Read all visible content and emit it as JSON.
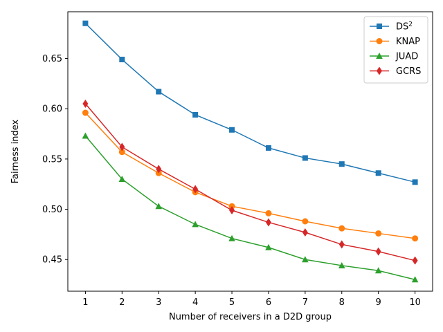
{
  "chart_data": {
    "type": "line",
    "title": "",
    "xlabel": "Number of receivers in a D2D group",
    "ylabel": "Fairness index",
    "x": [
      1,
      2,
      3,
      4,
      5,
      6,
      7,
      8,
      9,
      10
    ],
    "xlim": [
      0.52,
      10.48
    ],
    "ylim": [
      0.4185,
      0.6965
    ],
    "xticks": [
      "1",
      "2",
      "3",
      "4",
      "5",
      "6",
      "7",
      "8",
      "9",
      "10"
    ],
    "yticks": [
      0.45,
      0.5,
      0.55,
      0.6,
      0.65
    ],
    "ytick_labels": [
      "0.45",
      "0.50",
      "0.55",
      "0.60",
      "0.65"
    ],
    "grid": false,
    "legend_position": "top-right",
    "series": [
      {
        "name": "DS",
        "name_sup": "2",
        "color": "#1f77b4",
        "marker": "square",
        "values": [
          0.685,
          0.649,
          0.617,
          0.594,
          0.579,
          0.561,
          0.551,
          0.545,
          0.536,
          0.527
        ]
      },
      {
        "name": "KNAP",
        "name_sup": "",
        "color": "#ff7f0e",
        "marker": "circle",
        "values": [
          0.596,
          0.557,
          0.536,
          0.517,
          0.503,
          0.496,
          0.488,
          0.481,
          0.476,
          0.471
        ]
      },
      {
        "name": "JUAD",
        "name_sup": "",
        "color": "#2ca02c",
        "marker": "triangle",
        "values": [
          0.573,
          0.53,
          0.503,
          0.485,
          0.471,
          0.462,
          0.45,
          0.444,
          0.439,
          0.43
        ]
      },
      {
        "name": "GCRS",
        "name_sup": "",
        "color": "#d62728",
        "marker": "diamond",
        "values": [
          0.605,
          0.562,
          0.54,
          0.52,
          0.499,
          0.487,
          0.477,
          0.465,
          0.458,
          0.449
        ]
      }
    ]
  }
}
